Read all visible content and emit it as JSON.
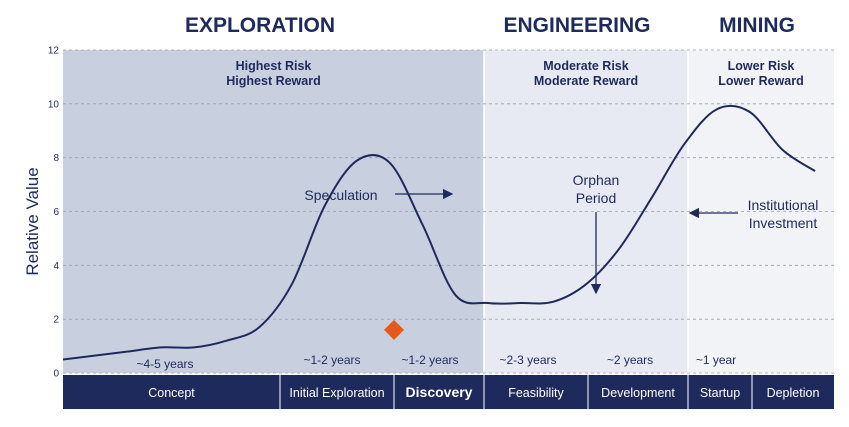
{
  "chart_data": {
    "type": "line",
    "ylabel": "Relative Value",
    "ylim": [
      0,
      12
    ],
    "yticks": [
      "0",
      "2",
      "4",
      "6",
      "8",
      "10",
      "12"
    ],
    "grid": true,
    "stages": [
      {
        "name": "EXPLORATION",
        "risk": [
          "Highest Risk",
          "Highest Reward"
        ],
        "color": "#c8d0e0"
      },
      {
        "name": "ENGINEERING",
        "risk": [
          "Moderate Risk",
          "Moderate Reward"
        ],
        "color": "#e7eaf2"
      },
      {
        "name": "MINING",
        "risk": [
          "Lower Risk",
          "Lower Reward"
        ],
        "color": "#f2f3f7"
      }
    ],
    "phases": [
      {
        "label": "Concept",
        "duration": "~4-5 years",
        "bold": false
      },
      {
        "label": "Initial Exploration",
        "duration": "~1-2 years",
        "bold": false
      },
      {
        "label": "Discovery",
        "duration": "~1-2 years",
        "bold": true
      },
      {
        "label": "Feasibility",
        "duration": "~2-3 years",
        "bold": false
      },
      {
        "label": "Development",
        "duration": "~2 years",
        "bold": false
      },
      {
        "label": "Startup",
        "duration": "~1 year",
        "bold": false
      },
      {
        "label": "Depletion",
        "duration": "",
        "bold": false
      }
    ],
    "series": [
      {
        "color": "#1f2a5c",
        "values": [
          0.5,
          0.65,
          0.8,
          0.95,
          0.95,
          1.2,
          1.7,
          3.3,
          6.2,
          7.9,
          7.8,
          5.5,
          2.9,
          2.6,
          2.6,
          2.65,
          3.3,
          4.6,
          6.5,
          8.5,
          9.8,
          9.7,
          8.3,
          7.5
        ]
      }
    ],
    "marker": {
      "label": "discovery-point",
      "value": 1.6,
      "color": "#e55a1c"
    },
    "annotations": [
      {
        "text": [
          "Speculation"
        ]
      },
      {
        "text": [
          "Orphan",
          "Period"
        ]
      },
      {
        "text": [
          "Institutional",
          "Investment"
        ]
      }
    ],
    "colors": {
      "navy": "#1f2a5c",
      "phase_bar": "#1f2a5c",
      "grid": "#9aa0b4"
    }
  }
}
